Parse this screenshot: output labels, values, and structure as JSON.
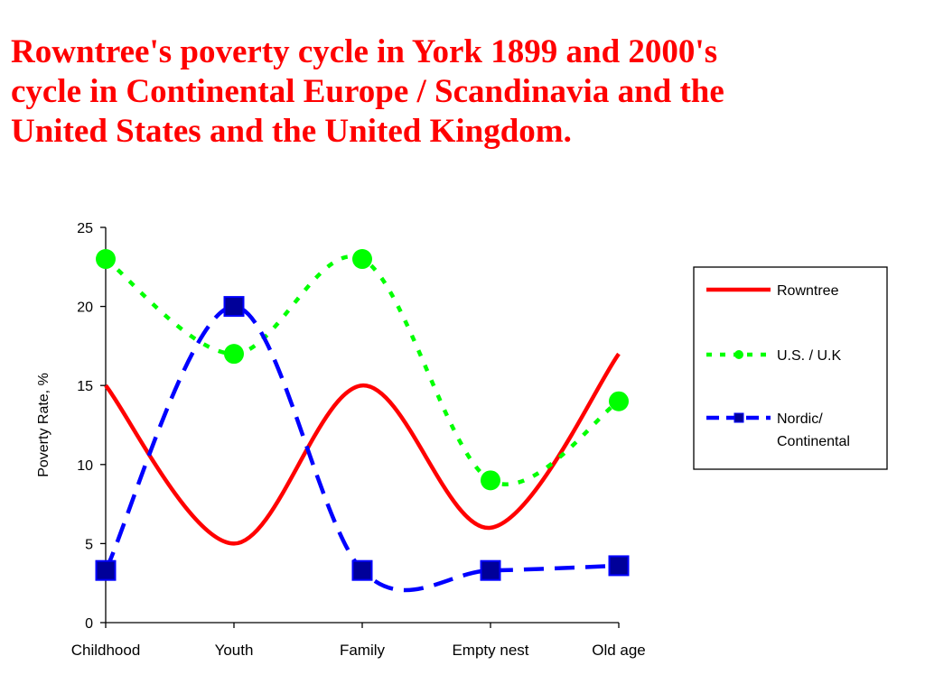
{
  "slide": {
    "title_lines": [
      "Rowntree's poverty cycle in York 1899 and 2000's",
      "cycle in Continental Europe / Scandinavia and the",
      "United States and the United Kingdom."
    ],
    "title_color": "#ff0000"
  },
  "chart_data": {
    "type": "line",
    "title": "",
    "xlabel": "",
    "ylabel": "Poverty Rate, %",
    "categories": [
      "Childhood",
      "Youth",
      "Family",
      "Empty nest",
      "Old age"
    ],
    "ylim": [
      0,
      25
    ],
    "yticks": [
      0,
      5,
      10,
      15,
      20,
      25
    ],
    "grid": false,
    "smooth": true,
    "legend_position": "right",
    "series": [
      {
        "name": "Rowntree",
        "values": [
          15,
          5,
          15,
          6,
          17
        ],
        "color": "#ff0000",
        "line_style": "solid",
        "marker": "none"
      },
      {
        "name": "U.S. / U.K",
        "values": [
          23,
          17,
          23,
          9,
          14
        ],
        "color": "#00ff00",
        "line_style": "dotted",
        "marker": "circle"
      },
      {
        "name": "Nordic/ Continental",
        "legend_lines": [
          "Nordic/",
          "Continental"
        ],
        "values": [
          3.3,
          20,
          3.3,
          3.3,
          3.6
        ],
        "color": "#0000ff",
        "marker_color": "#000099",
        "line_style": "dashed",
        "marker": "square"
      }
    ]
  }
}
